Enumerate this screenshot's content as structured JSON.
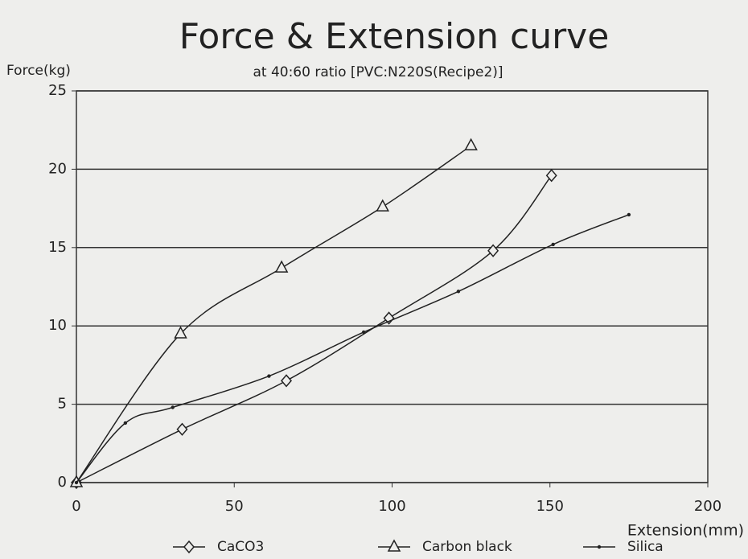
{
  "chart_data": {
    "type": "line",
    "title": "Force & Extension curve",
    "subtitle": "at 40:60 ratio [PVC:N220S(Recipe2)]",
    "y_label": "Force(kg)",
    "x_label": "Extension(mm)",
    "series": [
      {
        "name": "CaCO3",
        "color": "#222222",
        "marker": "diamond",
        "x": [
          0,
          33.5,
          66.5,
          99,
          132,
          150.5
        ],
        "values": [
          0,
          3.4,
          6.5,
          10.5,
          14.8,
          19.6
        ]
      },
      {
        "name": "Carbon black",
        "color": "#222222",
        "marker": "triangle",
        "x": [
          0,
          33,
          65,
          97,
          125
        ],
        "values": [
          0,
          9.5,
          13.7,
          17.6,
          21.5
        ]
      },
      {
        "name": "Silica",
        "color": "#222222",
        "marker": "dot",
        "x": [
          0,
          15.5,
          30.5,
          61,
          91,
          121,
          151,
          175
        ],
        "values": [
          0,
          3.8,
          4.8,
          6.8,
          9.6,
          12.2,
          15.2,
          17.1
        ]
      }
    ],
    "xlim": [
      0,
      200
    ],
    "xticks": [
      0,
      50,
      100,
      150,
      200
    ],
    "ylim": [
      0,
      25
    ],
    "yticks": [
      0,
      5,
      10,
      15,
      20,
      25
    ],
    "grid": true,
    "legend": "bottom"
  }
}
